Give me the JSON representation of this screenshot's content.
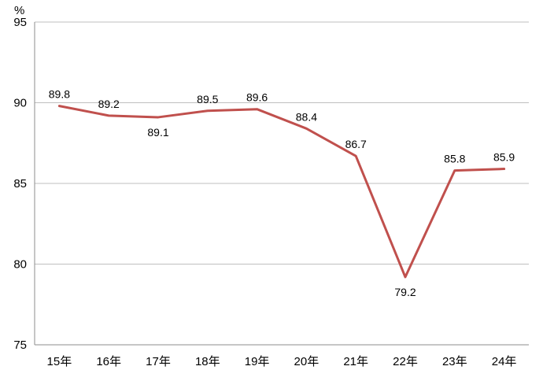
{
  "chart_data": {
    "type": "line",
    "title": "",
    "xlabel": "",
    "ylabel": "%",
    "categories": [
      "15年",
      "16年",
      "17年",
      "18年",
      "19年",
      "20年",
      "21年",
      "22年",
      "23年",
      "24年"
    ],
    "series": [
      {
        "name": "",
        "values": [
          89.8,
          89.2,
          89.1,
          89.5,
          89.6,
          88.4,
          86.7,
          79.2,
          85.8,
          85.9
        ],
        "color": "#c0504d"
      }
    ],
    "ylim": [
      75,
      95
    ],
    "yticks": [
      75,
      80,
      85,
      90,
      95
    ],
    "grid": true,
    "gridlines_at": [
      80,
      85,
      90,
      95
    ],
    "data_labels": true,
    "legend": "none"
  }
}
